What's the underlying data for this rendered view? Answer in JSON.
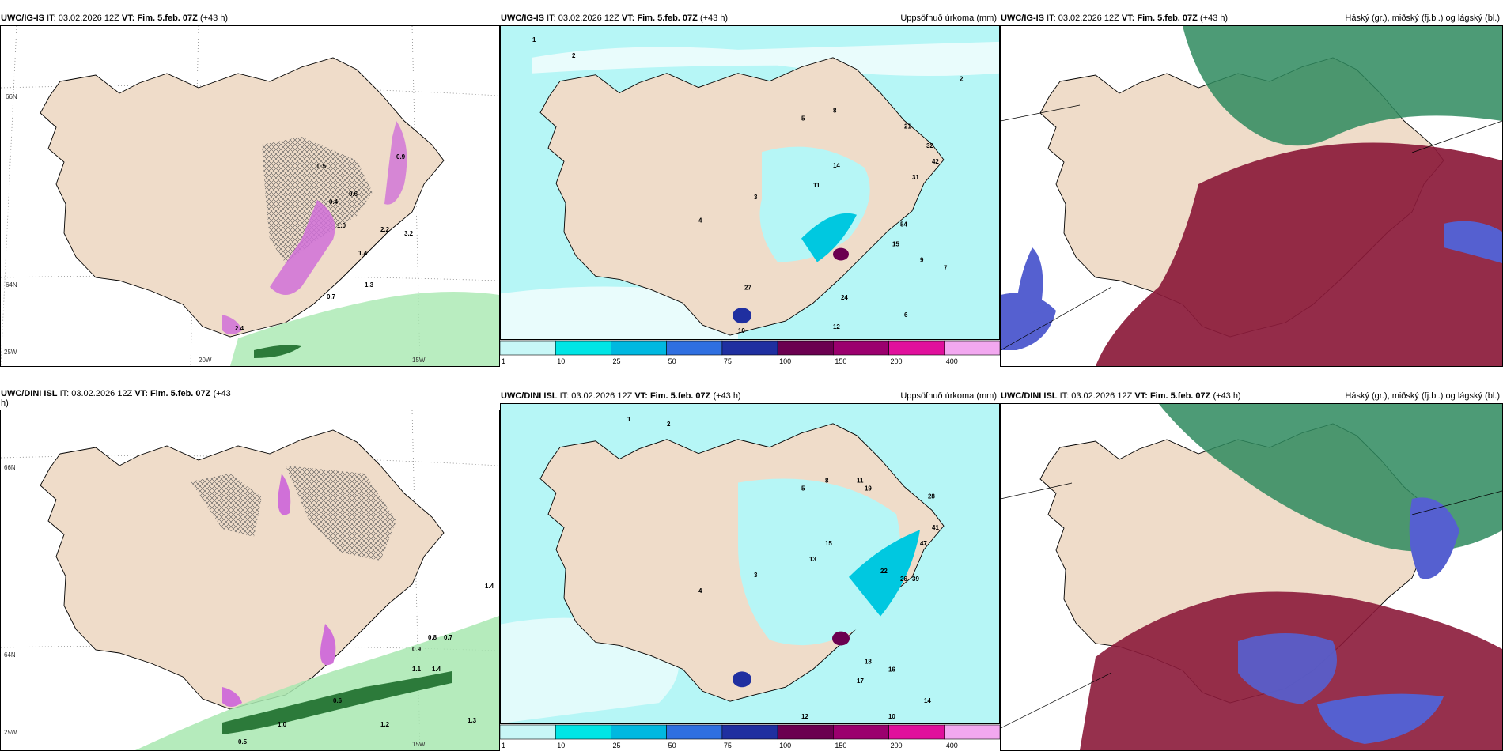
{
  "panels": [
    {
      "model": "UWC/IG-IS",
      "it_label": "IT:",
      "it": "03.02.2026 12Z",
      "vt_label": "VT:",
      "valid": "Fim. 5.feb. 07Z",
      "lead": "(+43 h)",
      "right_title": ""
    },
    {
      "model": "UWC/IG-IS",
      "it_label": "IT:",
      "it": "03.02.2026 12Z",
      "vt_label": "VT:",
      "valid": "Fim. 5.feb. 07Z",
      "lead": "(+43 h)",
      "right_title": "Uppsöfnuð úrkoma (mm)"
    },
    {
      "model": "UWC/IG-IS",
      "it_label": "IT:",
      "it": "03.02.2026 12Z",
      "vt_label": "VT:",
      "valid": "Fim. 5.feb. 07Z",
      "lead": "(+43 h)",
      "right_title": "Háský (gr.), miðský (fj.bl.) og lágský (bl.)"
    },
    {
      "model": "UWC/DINI ISL",
      "it_label": "IT:",
      "it": "03.02.2026 12Z",
      "vt_label": "VT:",
      "valid": "Fim. 5.feb. 07Z",
      "lead": "(+43",
      "lead2": "h)",
      "right_title": ""
    },
    {
      "model": "UWC/DINI ISL",
      "it_label": "IT:",
      "it": "03.02.2026 12Z",
      "vt_label": "VT:",
      "valid": "Fim. 5.feb. 07Z",
      "lead": "(+43 h)",
      "right_title": "Uppsöfnuð úrkoma (mm)"
    },
    {
      "model": "UWC/DINI ISL",
      "it_label": "IT:",
      "it": "03.02.2026 12Z",
      "vt_label": "VT:",
      "valid": "Fim. 5.feb. 07Z",
      "lead": "(+43 h)",
      "right_title": "Háský (gr.), miðský (fj.bl.) og lágský (bl.)"
    }
  ],
  "coords": {
    "lat1": "66N",
    "lat2": "64N",
    "lon1": "20W",
    "lon2": "15W",
    "lonleft": "25W"
  },
  "precip_scale": {
    "ticks": [
      "1",
      "10",
      "25",
      "50",
      "75",
      "100",
      "150",
      "200",
      "400"
    ],
    "colors": [
      "#c8f7f7",
      "#00e5e5",
      "#00b8e0",
      "#2f6fe0",
      "#1f2fa0",
      "#6b0050",
      "#9b006e",
      "#e0109c",
      "#f2a8f0"
    ]
  },
  "colors": {
    "land": "#efdcc9",
    "precip_light": "#b6f6f6",
    "snow_pink": "#d070d8",
    "rain_green": "#3fb35a",
    "cloud_red": "#8b1a3a",
    "cloud_green": "#2e8a5e",
    "cloud_blue": "#5560d0"
  },
  "labels_top_left": [
    "0.7",
    "0.5",
    "1.0",
    "0.4",
    "0.6",
    "1.4",
    "2.2",
    "3.2",
    "0.9",
    "1.3",
    "2.4"
  ],
  "labels_top_mid": [
    "1",
    "2",
    "3",
    "4",
    "5",
    "8",
    "14",
    "27",
    "24",
    "11",
    "21",
    "32",
    "42",
    "31",
    "54",
    "15",
    "9",
    "7",
    "12",
    "6",
    "10",
    "2"
  ],
  "labels_bot_left": [
    "1.4",
    "0.9",
    "0.8",
    "0.7",
    "1.1",
    "1.4",
    "0.6",
    "1.2",
    "1.0",
    "1.3",
    "0.5"
  ],
  "labels_bot_mid": [
    "1",
    "2",
    "3",
    "4",
    "5",
    "8",
    "11",
    "13",
    "15",
    "19",
    "22",
    "26",
    "39",
    "47",
    "41",
    "28",
    "18",
    "17",
    "16",
    "12",
    "14",
    "10"
  ]
}
